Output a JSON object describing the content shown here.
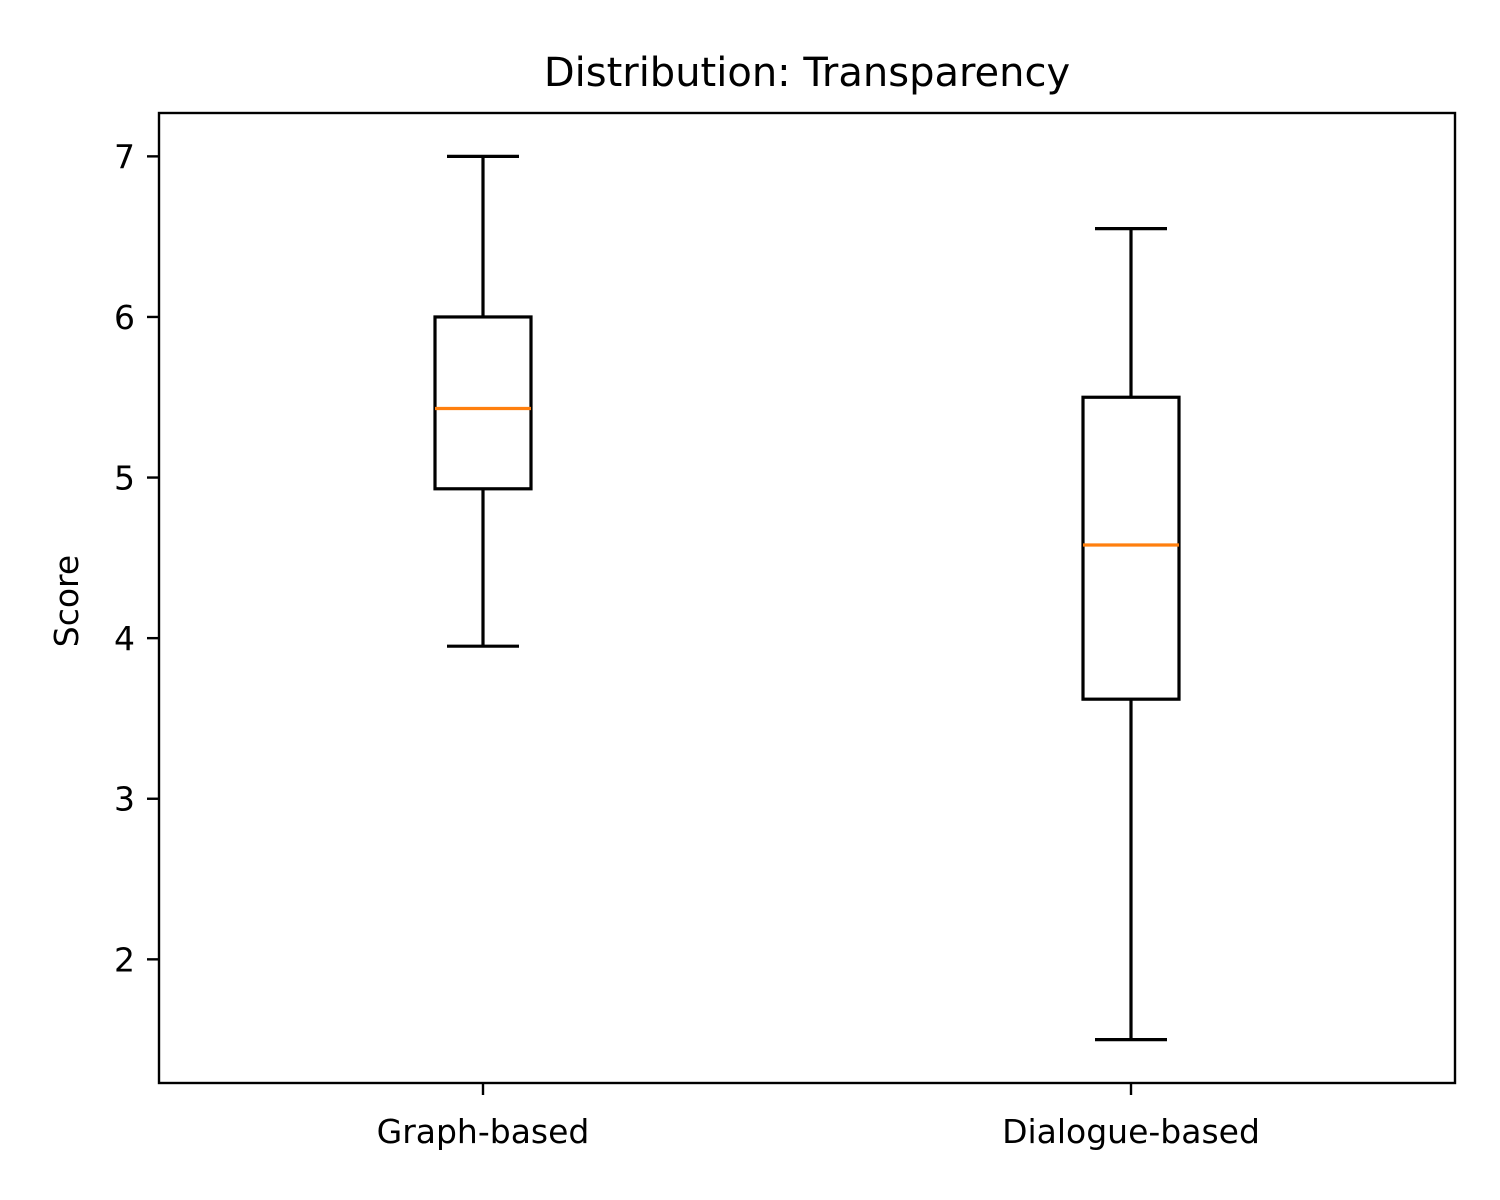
{
  "chart_data": {
    "type": "box",
    "title": "Distribution: Transparency",
    "xlabel": "",
    "ylabel": "Score",
    "ylim": [
      1.23,
      7.27
    ],
    "yticks": [
      2,
      3,
      4,
      5,
      6,
      7
    ],
    "categories": [
      "Graph-based",
      "Dialogue-based"
    ],
    "boxes": [
      {
        "category": "Graph-based",
        "whisker_low": 3.95,
        "q1": 4.93,
        "median": 5.43,
        "q3": 6.0,
        "whisker_high": 7.0
      },
      {
        "category": "Dialogue-based",
        "whisker_low": 1.5,
        "q1": 3.62,
        "median": 4.58,
        "q3": 5.5,
        "whisker_high": 6.55
      }
    ],
    "grid": false,
    "colors": {
      "box": "#000000",
      "median": "#ff7f0e"
    }
  }
}
